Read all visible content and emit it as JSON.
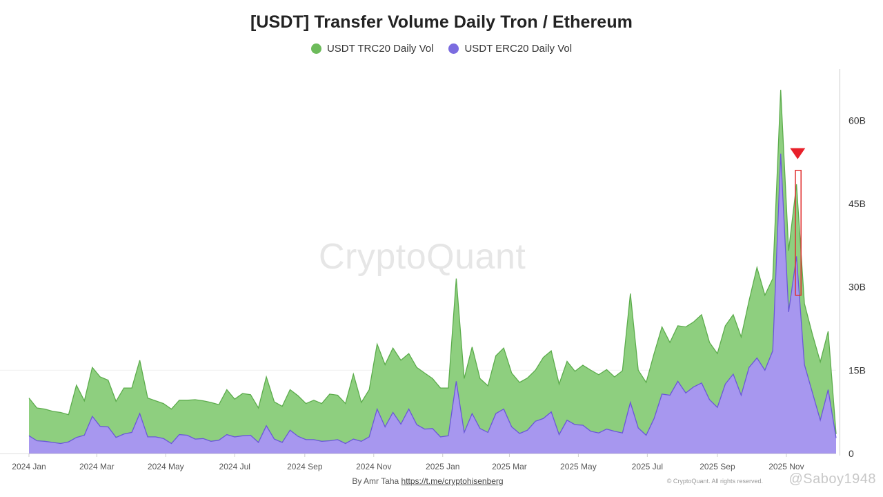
{
  "title": "[USDT] Transfer Volume Daily Tron / Ethereum",
  "credit": {
    "author": "By Amr Taha",
    "link": "https://t.me/cryptohisenberg"
  },
  "copyright": "© CryptoQuant. All rights reserved.",
  "watermark": "CryptoQuant",
  "user_watermark": "@Saboy1948",
  "chart_data": {
    "type": "area",
    "title": "[USDT] Transfer Volume Daily Tron / Ethereum",
    "legend_position": "top-center",
    "y_axis_position": "right",
    "ylim": [
      0,
      68
    ],
    "y_unit": "B",
    "y_ticks": [
      "0",
      "15B",
      "30B",
      "45B",
      "60B"
    ],
    "y_tick_values": [
      0,
      15,
      30,
      45,
      60
    ],
    "x_ticks": [
      "2024 Jan",
      "2024 Mar",
      "2024 May",
      "2024 Jul",
      "2024 Sep",
      "2024 Nov",
      "2025 Jan",
      "2025 Mar",
      "2025 May",
      "2025 Jul",
      "2025 Sep",
      "2025 Nov"
    ],
    "x_tick_dates": [
      "2024-01-01",
      "2024-03-01",
      "2024-05-01",
      "2024-07-01",
      "2024-09-01",
      "2024-11-01",
      "2025-01-01",
      "2025-03-01",
      "2025-05-01",
      "2025-07-01",
      "2025-09-01",
      "2025-11-01"
    ],
    "xlim": [
      "2024-01-01",
      "2025-12-15"
    ],
    "series": [
      {
        "name": "USDT TRC20 Daily Vol",
        "color": "#8ecf7f",
        "line_color": "#5cac4c",
        "legend_color": "#6dbb5b",
        "points": [
          [
            "2024-01-01",
            10.0
          ],
          [
            "2024-01-08",
            8.2
          ],
          [
            "2024-01-15",
            8.0
          ],
          [
            "2024-01-22",
            7.6
          ],
          [
            "2024-01-29",
            7.4
          ],
          [
            "2024-02-05",
            7.0
          ],
          [
            "2024-02-12",
            12.3
          ],
          [
            "2024-02-19",
            9.5
          ],
          [
            "2024-02-26",
            15.5
          ],
          [
            "2024-03-04",
            13.8
          ],
          [
            "2024-03-11",
            13.2
          ],
          [
            "2024-03-18",
            9.4
          ],
          [
            "2024-03-25",
            11.8
          ],
          [
            "2024-04-01",
            11.8
          ],
          [
            "2024-04-08",
            16.8
          ],
          [
            "2024-04-15",
            10.0
          ],
          [
            "2024-04-22",
            9.5
          ],
          [
            "2024-04-29",
            9.0
          ],
          [
            "2024-05-06",
            8.0
          ],
          [
            "2024-05-13",
            9.6
          ],
          [
            "2024-05-20",
            9.6
          ],
          [
            "2024-05-27",
            9.7
          ],
          [
            "2024-06-03",
            9.5
          ],
          [
            "2024-06-10",
            9.2
          ],
          [
            "2024-06-17",
            8.8
          ],
          [
            "2024-06-24",
            11.5
          ],
          [
            "2024-07-01",
            9.8
          ],
          [
            "2024-07-08",
            10.8
          ],
          [
            "2024-07-15",
            10.6
          ],
          [
            "2024-07-22",
            8.2
          ],
          [
            "2024-07-29",
            13.8
          ],
          [
            "2024-08-05",
            9.3
          ],
          [
            "2024-08-12",
            8.5
          ],
          [
            "2024-08-19",
            11.5
          ],
          [
            "2024-08-26",
            10.4
          ],
          [
            "2024-09-02",
            9.0
          ],
          [
            "2024-09-09",
            9.6
          ],
          [
            "2024-09-16",
            9.0
          ],
          [
            "2024-09-23",
            10.7
          ],
          [
            "2024-09-30",
            10.5
          ],
          [
            "2024-10-07",
            9.0
          ],
          [
            "2024-10-14",
            14.3
          ],
          [
            "2024-10-21",
            9.2
          ],
          [
            "2024-10-28",
            11.5
          ],
          [
            "2024-11-04",
            19.7
          ],
          [
            "2024-11-11",
            16.0
          ],
          [
            "2024-11-18",
            19.0
          ],
          [
            "2024-11-25",
            16.8
          ],
          [
            "2024-12-02",
            18.0
          ],
          [
            "2024-12-09",
            15.5
          ],
          [
            "2024-12-16",
            14.5
          ],
          [
            "2024-12-23",
            13.5
          ],
          [
            "2024-12-30",
            11.8
          ],
          [
            "2025-01-06",
            11.8
          ],
          [
            "2025-01-13",
            31.5
          ],
          [
            "2025-01-20",
            13.5
          ],
          [
            "2025-01-27",
            19.2
          ],
          [
            "2025-02-03",
            13.5
          ],
          [
            "2025-02-10",
            12.2
          ],
          [
            "2025-02-17",
            17.6
          ],
          [
            "2025-02-24",
            19.0
          ],
          [
            "2025-03-03",
            14.5
          ],
          [
            "2025-03-10",
            12.8
          ],
          [
            "2025-03-17",
            13.6
          ],
          [
            "2025-03-24",
            15.0
          ],
          [
            "2025-03-31",
            17.3
          ],
          [
            "2025-04-07",
            18.5
          ],
          [
            "2025-04-14",
            12.5
          ],
          [
            "2025-04-21",
            16.6
          ],
          [
            "2025-04-28",
            14.8
          ],
          [
            "2025-05-05",
            15.9
          ],
          [
            "2025-05-12",
            15.0
          ],
          [
            "2025-05-19",
            14.2
          ],
          [
            "2025-05-26",
            15.1
          ],
          [
            "2025-06-02",
            13.8
          ],
          [
            "2025-06-09",
            14.9
          ],
          [
            "2025-06-16",
            28.8
          ],
          [
            "2025-06-23",
            15.0
          ],
          [
            "2025-06-30",
            12.8
          ],
          [
            "2025-07-07",
            18.0
          ],
          [
            "2025-07-14",
            22.8
          ],
          [
            "2025-07-21",
            20.0
          ],
          [
            "2025-07-28",
            23.0
          ],
          [
            "2025-08-04",
            22.8
          ],
          [
            "2025-08-11",
            23.7
          ],
          [
            "2025-08-18",
            25.0
          ],
          [
            "2025-08-25",
            20.0
          ],
          [
            "2025-09-01",
            18.0
          ],
          [
            "2025-09-08",
            23.0
          ],
          [
            "2025-09-15",
            25.0
          ],
          [
            "2025-09-22",
            21.0
          ],
          [
            "2025-09-29",
            27.5
          ],
          [
            "2025-10-06",
            33.5
          ],
          [
            "2025-10-13",
            28.5
          ],
          [
            "2025-10-20",
            31.5
          ],
          [
            "2025-10-27",
            65.5
          ],
          [
            "2025-11-03",
            36.5
          ],
          [
            "2025-11-10",
            48.5
          ],
          [
            "2025-11-17",
            27.0
          ],
          [
            "2025-11-24",
            21.5
          ],
          [
            "2025-12-01",
            16.5
          ],
          [
            "2025-12-08",
            22.0
          ],
          [
            "2025-12-15",
            3.5
          ]
        ]
      },
      {
        "name": "USDT ERC20 Daily Vol",
        "color": "#a797ef",
        "line_color": "#6a58d8",
        "legend_color": "#7b6ce0",
        "points": [
          [
            "2024-01-01",
            3.2
          ],
          [
            "2024-01-08",
            2.3
          ],
          [
            "2024-01-15",
            2.2
          ],
          [
            "2024-01-22",
            2.0
          ],
          [
            "2024-01-29",
            1.8
          ],
          [
            "2024-02-05",
            2.1
          ],
          [
            "2024-02-12",
            2.9
          ],
          [
            "2024-02-19",
            3.3
          ],
          [
            "2024-02-26",
            6.7
          ],
          [
            "2024-03-04",
            4.9
          ],
          [
            "2024-03-11",
            4.8
          ],
          [
            "2024-03-18",
            2.9
          ],
          [
            "2024-03-25",
            3.5
          ],
          [
            "2024-04-01",
            3.8
          ],
          [
            "2024-04-08",
            7.2
          ],
          [
            "2024-04-15",
            3.0
          ],
          [
            "2024-04-22",
            3.0
          ],
          [
            "2024-04-29",
            2.7
          ],
          [
            "2024-05-06",
            1.8
          ],
          [
            "2024-05-13",
            3.4
          ],
          [
            "2024-05-20",
            3.3
          ],
          [
            "2024-05-27",
            2.6
          ],
          [
            "2024-06-03",
            2.7
          ],
          [
            "2024-06-10",
            2.2
          ],
          [
            "2024-06-17",
            2.4
          ],
          [
            "2024-06-24",
            3.4
          ],
          [
            "2024-07-01",
            3.0
          ],
          [
            "2024-07-08",
            3.2
          ],
          [
            "2024-07-15",
            3.3
          ],
          [
            "2024-07-22",
            2.0
          ],
          [
            "2024-07-29",
            5.0
          ],
          [
            "2024-08-05",
            2.6
          ],
          [
            "2024-08-12",
            2.0
          ],
          [
            "2024-08-19",
            4.2
          ],
          [
            "2024-08-26",
            3.1
          ],
          [
            "2024-09-02",
            2.5
          ],
          [
            "2024-09-09",
            2.5
          ],
          [
            "2024-09-16",
            2.2
          ],
          [
            "2024-09-23",
            2.3
          ],
          [
            "2024-09-30",
            2.5
          ],
          [
            "2024-10-07",
            1.8
          ],
          [
            "2024-10-14",
            2.6
          ],
          [
            "2024-10-21",
            2.2
          ],
          [
            "2024-10-28",
            3.0
          ],
          [
            "2024-11-04",
            8.0
          ],
          [
            "2024-11-11",
            4.8
          ],
          [
            "2024-11-18",
            7.4
          ],
          [
            "2024-11-25",
            5.3
          ],
          [
            "2024-12-02",
            8.0
          ],
          [
            "2024-12-09",
            5.2
          ],
          [
            "2024-12-16",
            4.4
          ],
          [
            "2024-12-23",
            4.5
          ],
          [
            "2024-12-30",
            3.0
          ],
          [
            "2025-01-06",
            3.2
          ],
          [
            "2025-01-13",
            13.0
          ],
          [
            "2025-01-20",
            3.8
          ],
          [
            "2025-01-27",
            7.2
          ],
          [
            "2025-02-03",
            4.5
          ],
          [
            "2025-02-10",
            3.8
          ],
          [
            "2025-02-17",
            7.2
          ],
          [
            "2025-02-24",
            8.0
          ],
          [
            "2025-03-03",
            4.8
          ],
          [
            "2025-03-10",
            3.6
          ],
          [
            "2025-03-17",
            4.2
          ],
          [
            "2025-03-24",
            5.8
          ],
          [
            "2025-03-31",
            6.3
          ],
          [
            "2025-04-07",
            7.5
          ],
          [
            "2025-04-14",
            3.4
          ],
          [
            "2025-04-21",
            6.0
          ],
          [
            "2025-04-28",
            5.2
          ],
          [
            "2025-05-05",
            5.1
          ],
          [
            "2025-05-12",
            4.0
          ],
          [
            "2025-05-19",
            3.7
          ],
          [
            "2025-05-26",
            4.4
          ],
          [
            "2025-06-02",
            4.0
          ],
          [
            "2025-06-09",
            3.7
          ],
          [
            "2025-06-16",
            9.2
          ],
          [
            "2025-06-23",
            4.6
          ],
          [
            "2025-06-30",
            3.3
          ],
          [
            "2025-07-07",
            6.3
          ],
          [
            "2025-07-14",
            10.7
          ],
          [
            "2025-07-21",
            10.5
          ],
          [
            "2025-07-28",
            13.0
          ],
          [
            "2025-08-04",
            10.9
          ],
          [
            "2025-08-11",
            12.0
          ],
          [
            "2025-08-18",
            12.7
          ],
          [
            "2025-08-25",
            9.7
          ],
          [
            "2025-09-01",
            8.3
          ],
          [
            "2025-09-08",
            12.5
          ],
          [
            "2025-09-15",
            14.3
          ],
          [
            "2025-09-22",
            10.5
          ],
          [
            "2025-09-29",
            15.5
          ],
          [
            "2025-10-06",
            17.2
          ],
          [
            "2025-10-13",
            15.0
          ],
          [
            "2025-10-20",
            18.5
          ],
          [
            "2025-10-27",
            54.0
          ],
          [
            "2025-11-03",
            25.5
          ],
          [
            "2025-11-10",
            35.5
          ],
          [
            "2025-11-17",
            16.0
          ],
          [
            "2025-11-24",
            11.0
          ],
          [
            "2025-12-01",
            6.0
          ],
          [
            "2025-12-08",
            11.5
          ],
          [
            "2025-12-15",
            2.8
          ]
        ]
      }
    ],
    "annotations": [
      {
        "type": "highlight-box",
        "color": "#e03030",
        "x_range": [
          "2025-11-09",
          "2025-11-14"
        ],
        "y_range": [
          28.5,
          51
        ]
      },
      {
        "type": "down-arrow-marker",
        "color": "#e8202a",
        "x": "2025-11-11",
        "y": 53
      }
    ]
  }
}
